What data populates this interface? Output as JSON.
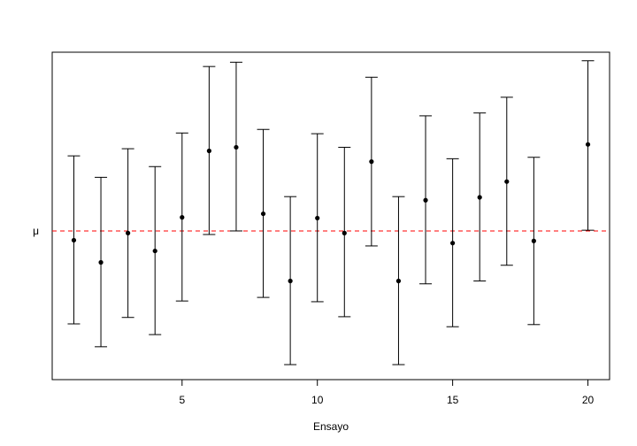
{
  "chart_data": {
    "type": "errorbar",
    "title": "",
    "xlabel": "Ensayo",
    "ylabel": "",
    "xlim": [
      0.2,
      20.8
    ],
    "ylim": [
      -2.08,
      2.5
    ],
    "x_ticks": [
      5,
      10,
      15,
      20
    ],
    "x_tick_labels": [
      "5",
      "10",
      "15",
      "20"
    ],
    "reference_line": {
      "label": "μ",
      "value": 0,
      "color": "#ff0000",
      "style": "dashed"
    },
    "grid": false,
    "legend": "none",
    "point_color": "#000000",
    "x": [
      1,
      2,
      3,
      4,
      5,
      6,
      7,
      8,
      9,
      10,
      11,
      12,
      13,
      14,
      15,
      16,
      17,
      18,
      19,
      20
    ],
    "series": [
      {
        "estimate": [
          -0.13,
          -0.44,
          -0.03,
          -0.28,
          0.19,
          1.12,
          1.17,
          0.24,
          -0.7,
          0.18,
          -0.03,
          0.97,
          -0.7,
          0.43,
          -0.17,
          0.47,
          0.69,
          -0.14,
          null,
          1.21
        ],
        "lower": [
          -1.3,
          -1.62,
          -1.21,
          -1.45,
          -0.98,
          -0.05,
          0.0,
          -0.93,
          -1.87,
          -0.99,
          -1.2,
          -0.21,
          -1.87,
          -0.74,
          -1.34,
          -0.7,
          -0.48,
          -1.31,
          null,
          0.01
        ],
        "upper": [
          1.05,
          0.75,
          1.15,
          0.9,
          1.37,
          2.3,
          2.36,
          1.42,
          0.48,
          1.36,
          1.17,
          2.15,
          0.48,
          1.61,
          1.01,
          1.65,
          1.87,
          1.03,
          null,
          2.38
        ]
      }
    ]
  }
}
